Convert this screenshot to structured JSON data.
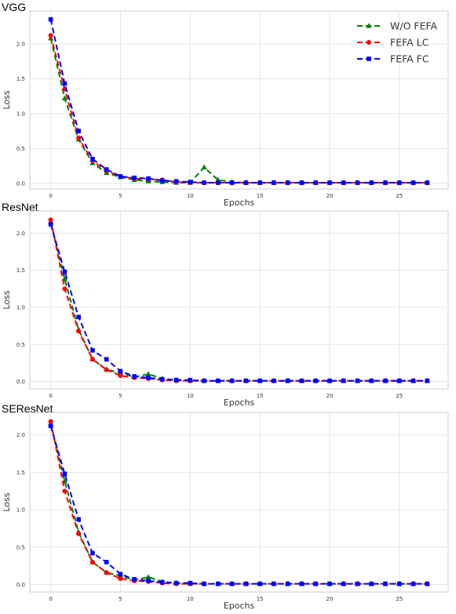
{
  "chart_data": [
    {
      "type": "line",
      "title": "VGG",
      "xlabel": "Epochs",
      "ylabel": "Loss",
      "xlim": [
        -1.5,
        28.5
      ],
      "ylim": [
        -0.08,
        2.47
      ],
      "xticks": [
        0,
        5,
        10,
        15,
        20,
        25
      ],
      "yticks": [
        0.0,
        0.5,
        1.0,
        1.5,
        2.0
      ],
      "grid": true,
      "legend": "top-right",
      "x": [
        0,
        1,
        2,
        3,
        4,
        5,
        6,
        7,
        8,
        9,
        10,
        11,
        12,
        13,
        14,
        15,
        16,
        17,
        18,
        19,
        20,
        21,
        22,
        23,
        24,
        25,
        26,
        27
      ],
      "series": [
        {
          "name": "W/O FEFA",
          "color": "#008000",
          "marker": "triangle",
          "values": [
            2.08,
            1.22,
            0.63,
            0.29,
            0.15,
            0.09,
            0.05,
            0.03,
            0.02,
            0.01,
            0.01,
            0.23,
            0.05,
            0.02,
            0.01,
            0.01,
            0.01,
            0.01,
            0.01,
            0.01,
            0.01,
            0.01,
            0.01,
            0.01,
            0.01,
            0.01,
            0.01,
            0.01
          ]
        },
        {
          "name": "FEFA LC",
          "color": "#ff0000",
          "marker": "circle",
          "values": [
            2.12,
            1.35,
            0.65,
            0.32,
            0.18,
            0.1,
            0.07,
            0.06,
            0.05,
            0.02,
            0.01,
            0.01,
            0.01,
            0.01,
            0.01,
            0.01,
            0.01,
            0.01,
            0.01,
            0.01,
            0.01,
            0.01,
            0.01,
            0.01,
            0.01,
            0.01,
            0.01,
            0.01
          ]
        },
        {
          "name": "FEFA FC",
          "color": "#0000ff",
          "marker": "square",
          "values": [
            2.35,
            1.43,
            0.75,
            0.35,
            0.2,
            0.1,
            0.08,
            0.07,
            0.04,
            0.03,
            0.02,
            0.01,
            0.01,
            0.01,
            0.01,
            0.01,
            0.01,
            0.01,
            0.01,
            0.01,
            0.01,
            0.01,
            0.01,
            0.01,
            0.01,
            0.01,
            0.01,
            0.01
          ]
        }
      ]
    },
    {
      "type": "line",
      "title": "ResNet",
      "xlabel": "Epochs",
      "ylabel": "Loss",
      "xlim": [
        -1.5,
        28.5
      ],
      "ylim": [
        -0.1,
        2.3
      ],
      "xticks": [
        0,
        5,
        10,
        15,
        20,
        25
      ],
      "yticks": [
        0.0,
        0.5,
        1.0,
        1.5,
        2.0
      ],
      "grid": true,
      "x": [
        0,
        1,
        2,
        3,
        4,
        5,
        6,
        7,
        8,
        9,
        10,
        11,
        12,
        13,
        14,
        15,
        16,
        17,
        18,
        19,
        20,
        21,
        22,
        23,
        24,
        25,
        26,
        27
      ],
      "series": [
        {
          "name": "W/O FEFA",
          "color": "#008000",
          "marker": "triangle",
          "values": [
            2.15,
            1.38,
            0.7,
            0.3,
            0.16,
            0.12,
            0.06,
            0.1,
            0.04,
            0.02,
            0.01,
            0.01,
            0.01,
            0.01,
            0.01,
            0.01,
            0.01,
            0.01,
            0.01,
            0.01,
            0.01,
            0.01,
            0.01,
            0.01,
            0.01,
            0.01,
            0.01,
            0.01
          ]
        },
        {
          "name": "FEFA LC",
          "color": "#ff0000",
          "marker": "circle",
          "values": [
            2.18,
            1.25,
            0.68,
            0.3,
            0.16,
            0.08,
            0.05,
            0.04,
            0.02,
            0.01,
            0.01,
            0.01,
            0.01,
            0.01,
            0.01,
            0.01,
            0.01,
            0.01,
            0.01,
            0.01,
            0.01,
            0.01,
            0.01,
            0.01,
            0.01,
            0.01,
            0.01,
            0.01
          ]
        },
        {
          "name": "FEFA FC",
          "color": "#0000ff",
          "marker": "square",
          "values": [
            2.12,
            1.48,
            0.87,
            0.42,
            0.3,
            0.14,
            0.07,
            0.05,
            0.03,
            0.02,
            0.02,
            0.01,
            0.01,
            0.01,
            0.01,
            0.01,
            0.01,
            0.01,
            0.01,
            0.01,
            0.01,
            0.01,
            0.01,
            0.01,
            0.01,
            0.01,
            0.01,
            0.01
          ]
        }
      ]
    },
    {
      "type": "line",
      "title": "SEResNet",
      "xlabel": "Epochs",
      "ylabel": "Loss",
      "xlim": [
        -1.5,
        28.5
      ],
      "ylim": [
        -0.1,
        2.3
      ],
      "xticks": [
        0,
        5,
        10,
        15,
        20,
        25
      ],
      "yticks": [
        0.0,
        0.5,
        1.0,
        1.5,
        2.0
      ],
      "grid": true,
      "x": [
        0,
        1,
        2,
        3,
        4,
        5,
        6,
        7,
        8,
        9,
        10,
        11,
        12,
        13,
        14,
        15,
        16,
        17,
        18,
        19,
        20,
        21,
        22,
        23,
        24,
        25,
        26,
        27
      ],
      "series": [
        {
          "name": "W/O FEFA",
          "color": "#008000",
          "marker": "triangle",
          "values": [
            2.15,
            1.38,
            0.7,
            0.3,
            0.16,
            0.12,
            0.06,
            0.1,
            0.04,
            0.02,
            0.01,
            0.01,
            0.01,
            0.01,
            0.01,
            0.01,
            0.01,
            0.01,
            0.01,
            0.01,
            0.01,
            0.01,
            0.01,
            0.01,
            0.01,
            0.01,
            0.01,
            0.01
          ]
        },
        {
          "name": "FEFA LC",
          "color": "#ff0000",
          "marker": "circle",
          "values": [
            2.18,
            1.25,
            0.68,
            0.3,
            0.16,
            0.08,
            0.05,
            0.04,
            0.02,
            0.01,
            0.01,
            0.01,
            0.01,
            0.01,
            0.01,
            0.01,
            0.01,
            0.01,
            0.01,
            0.01,
            0.01,
            0.01,
            0.01,
            0.01,
            0.01,
            0.01,
            0.01,
            0.01
          ]
        },
        {
          "name": "FEFA FC",
          "color": "#0000ff",
          "marker": "square",
          "values": [
            2.12,
            1.48,
            0.87,
            0.42,
            0.3,
            0.14,
            0.07,
            0.05,
            0.03,
            0.02,
            0.02,
            0.01,
            0.01,
            0.01,
            0.01,
            0.01,
            0.01,
            0.01,
            0.01,
            0.01,
            0.01,
            0.01,
            0.01,
            0.01,
            0.01,
            0.01,
            0.01,
            0.01
          ]
        }
      ]
    }
  ]
}
